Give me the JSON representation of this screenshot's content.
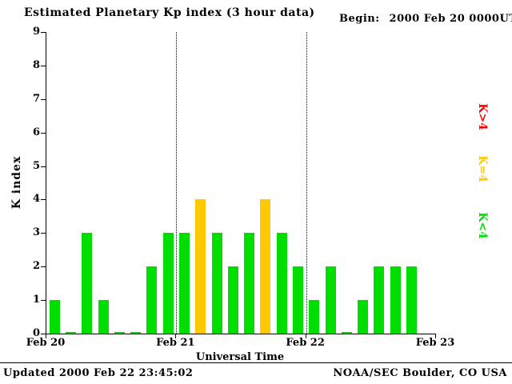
{
  "header": {
    "title": "Estimated Planetary Kp index (3 hour data)",
    "begin_label": "Begin:",
    "begin_value": "2000 Feb 20 0000UT"
  },
  "footer": {
    "updated": "Updated 2000 Feb 22 23:45:02",
    "source": "NOAA/SEC Boulder, CO USA"
  },
  "legend": [
    {
      "label": "K>4",
      "color": "#ff0000"
    },
    {
      "label": "K=4",
      "color": "#ffc800"
    },
    {
      "label": "K<4",
      "color": "#00dd00"
    }
  ],
  "chart_data": {
    "type": "bar",
    "title": "Estimated Planetary Kp index (3 hour data)",
    "xlabel": "Universal Time",
    "ylabel": "K index",
    "ylim": [
      0,
      9
    ],
    "y_ticks": [
      0,
      1,
      2,
      3,
      4,
      5,
      6,
      7,
      8,
      9
    ],
    "x_tick_labels": [
      "Feb 20",
      "Feb 21",
      "Feb 22",
      "Feb 23"
    ],
    "bar_interval_hours": 3,
    "days": [
      {
        "date": "Feb 20",
        "values": [
          1,
          0,
          3,
          1,
          0,
          0,
          2,
          3
        ]
      },
      {
        "date": "Feb 21",
        "values": [
          3,
          4,
          3,
          2,
          3,
          4,
          3,
          2
        ]
      },
      {
        "date": "Feb 22",
        "values": [
          1,
          2,
          0,
          1,
          2,
          2,
          2
        ]
      }
    ],
    "colors": {
      "k_lt_4": "#00dd00",
      "k_eq_4": "#ffc800",
      "k_gt_4": "#ff0000"
    },
    "grid": "dotted vertical lines at interior day boundaries",
    "legend_position": "right, rotated"
  }
}
